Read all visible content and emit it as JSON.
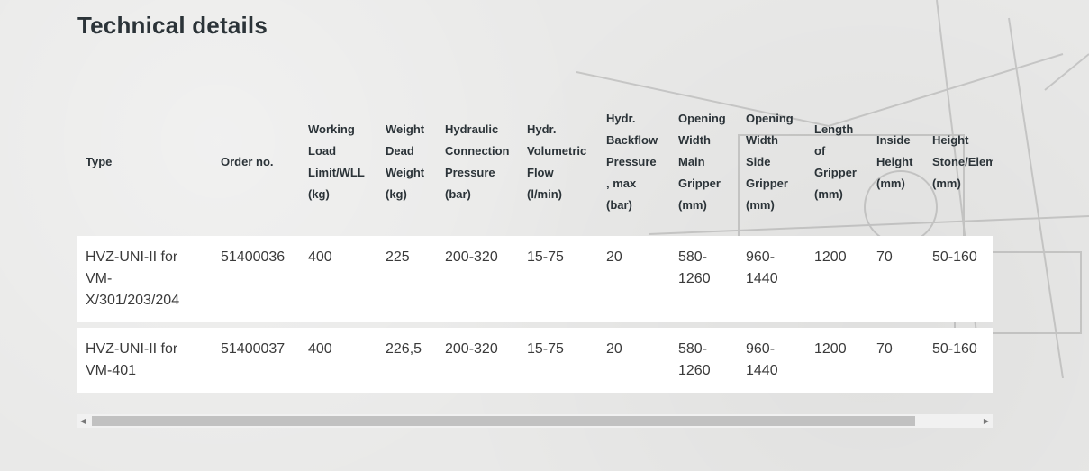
{
  "title": "Technical details",
  "table": {
    "headers": [
      "Type",
      "Order no.",
      "Working\nLoad\nLimit/WLL\n(kg)",
      "Weight\nDead\nWeight\n(kg)",
      "Hydraulic\nConnection\nPressure\n(bar)",
      "Hydr.\nVolumetric\nFlow\n(l/min)",
      "Hydr.\nBackflow\nPressure\n, max\n(bar)",
      "Opening\nWidth\nMain\nGripper\n(mm)",
      "Opening\nWidth\nSide\nGripper\n(mm)",
      "Length\nof\nGripper\n(mm)",
      "Inside\nHeight\n(mm)",
      "Height\nStone/Element\n(mm)"
    ],
    "rows": [
      [
        "HVZ-UNI-II for\nVM-\nX/301/203/204",
        "51400036",
        "400",
        "225",
        "200-320",
        "15-75",
        "20",
        "580-\n1260",
        "960-\n1440",
        "1200",
        "70",
        "50-160"
      ],
      [
        "HVZ-UNI-II for\nVM-401",
        "51400037",
        "400",
        "226,5",
        "200-320",
        "15-75",
        "20",
        "580-\n1260",
        "960-\n1440",
        "1200",
        "70",
        "50-160"
      ]
    ]
  },
  "scrollbar": {
    "position_fraction": 0.0,
    "visible_fraction": 0.93,
    "left_arrow": "◀",
    "right_arrow": "▶"
  }
}
